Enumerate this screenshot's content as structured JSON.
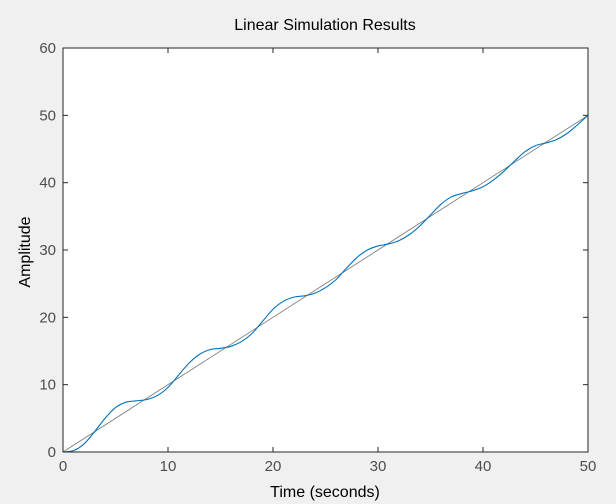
{
  "chart_data": {
    "type": "line",
    "title": "Linear Simulation Results",
    "xlabel": "Time (seconds)",
    "ylabel": "Amplitude",
    "xlim": [
      0,
      50
    ],
    "ylim": [
      0,
      60
    ],
    "xticks": [
      0,
      10,
      20,
      30,
      40,
      50
    ],
    "yticks": [
      0,
      10,
      20,
      30,
      40,
      50,
      60
    ],
    "grid": false,
    "series": [
      {
        "color": "#808080",
        "x": [
          0,
          50
        ],
        "y": [
          0,
          50
        ]
      },
      {
        "color": "#0072bd",
        "x": [
          0,
          1,
          2,
          3,
          4,
          5,
          6,
          7,
          8,
          9,
          10,
          11,
          12,
          13,
          14,
          15,
          16,
          17,
          18,
          19,
          20,
          21,
          22,
          23,
          24,
          25,
          26,
          27,
          28,
          29,
          30,
          31,
          32,
          33,
          34,
          35,
          36,
          37,
          38,
          39,
          40,
          41,
          42,
          43,
          44,
          45,
          46,
          47,
          48,
          49,
          50
        ],
        "y": [
          0,
          0.2,
          1.2,
          3.0,
          5.0,
          6.6,
          7.4,
          7.6,
          7.8,
          8.4,
          9.6,
          11.4,
          13.2,
          14.5,
          15.2,
          15.4,
          15.7,
          16.4,
          17.6,
          19.4,
          21.2,
          22.4,
          23.0,
          23.2,
          23.6,
          24.4,
          25.6,
          27.3,
          28.9,
          30.0,
          30.6,
          30.9,
          31.4,
          32.3,
          33.6,
          35.2,
          36.8,
          37.9,
          38.4,
          38.8,
          39.4,
          40.4,
          41.7,
          43.2,
          44.6,
          45.5,
          45.9,
          46.4,
          47.3,
          48.6,
          50.0
        ]
      }
    ]
  }
}
